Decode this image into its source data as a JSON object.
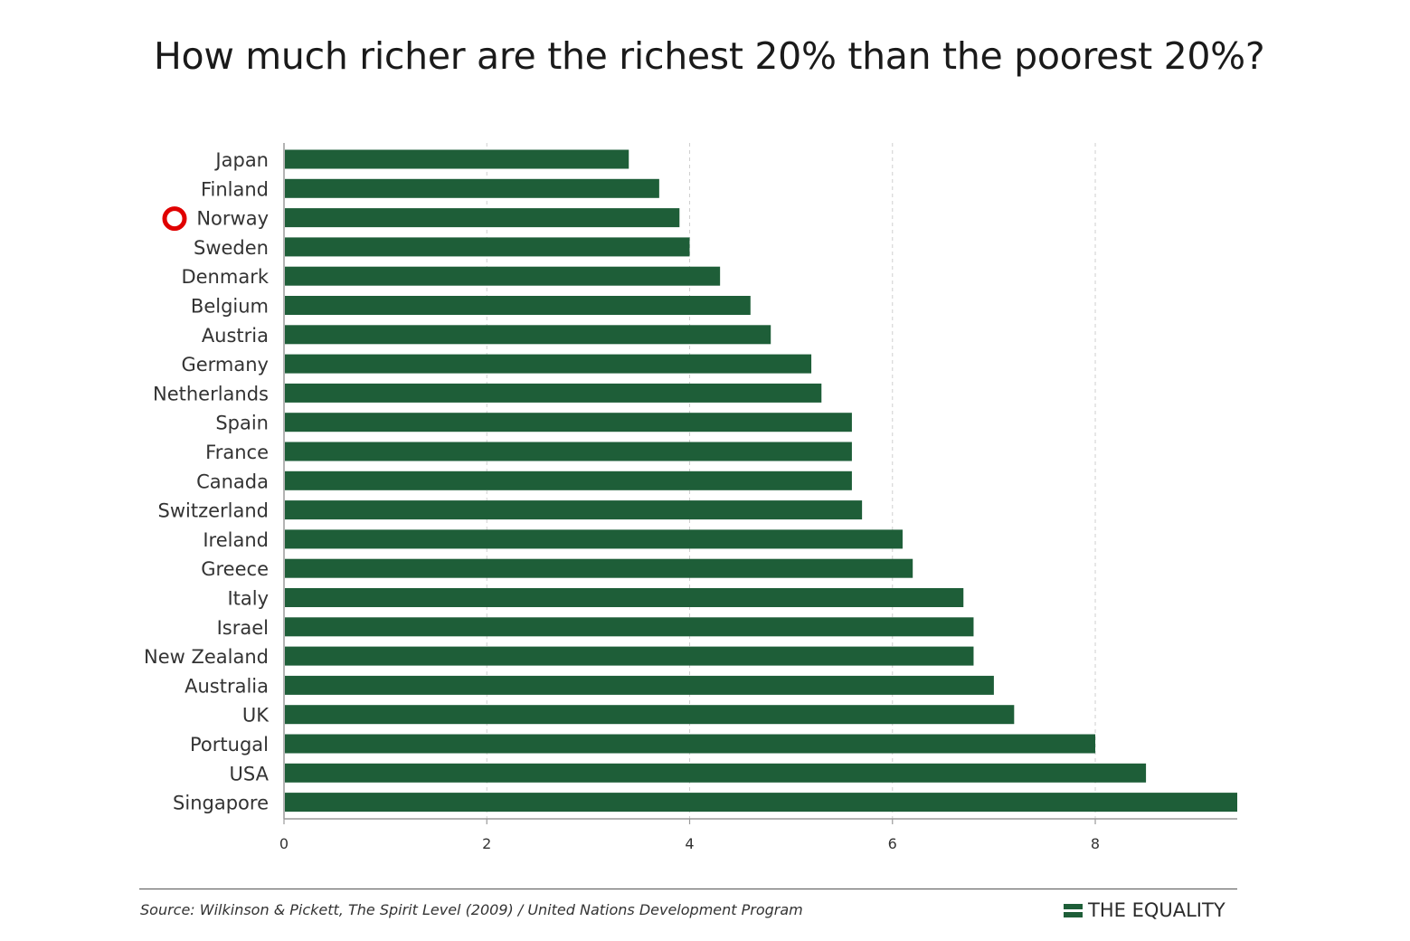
{
  "header": {
    "title": "How much richer are the richest 20% than the poorest 20%?"
  },
  "colors": {
    "bar": "#1e5e38",
    "highlight_marker": "#e00000",
    "gridline": "#d0d0d0",
    "brand_icon": "#1e5e38"
  },
  "chart_data": {
    "type": "bar",
    "orientation": "horizontal",
    "title": "How much richer are the richest 20% than the poorest 20%?",
    "xlabel": "",
    "ylabel": "",
    "xlim": [
      0,
      9.4
    ],
    "xticks": [
      0,
      2,
      4,
      6,
      8
    ],
    "grid": "vertical dashed",
    "highlighted_category": "Norway",
    "categories": [
      "Japan",
      "Finland",
      "Norway",
      "Sweden",
      "Denmark",
      "Belgium",
      "Austria",
      "Germany",
      "Netherlands",
      "Spain",
      "France",
      "Canada",
      "Switzerland",
      "Ireland",
      "Greece",
      "Italy",
      "Israel",
      "New Zealand",
      "Australia",
      "UK",
      "Portugal",
      "USA",
      "Singapore"
    ],
    "values": [
      3.4,
      3.7,
      3.9,
      4.0,
      4.3,
      4.6,
      4.8,
      5.2,
      5.3,
      5.6,
      5.6,
      5.6,
      5.7,
      6.1,
      6.2,
      6.7,
      6.8,
      6.8,
      7.0,
      7.2,
      8.0,
      8.5,
      9.4
    ]
  },
  "footer": {
    "source": "Source: Wilkinson & Pickett, The Spirit Level (2009) / United Nations Development Program",
    "brand": "THE EQUALITY"
  }
}
